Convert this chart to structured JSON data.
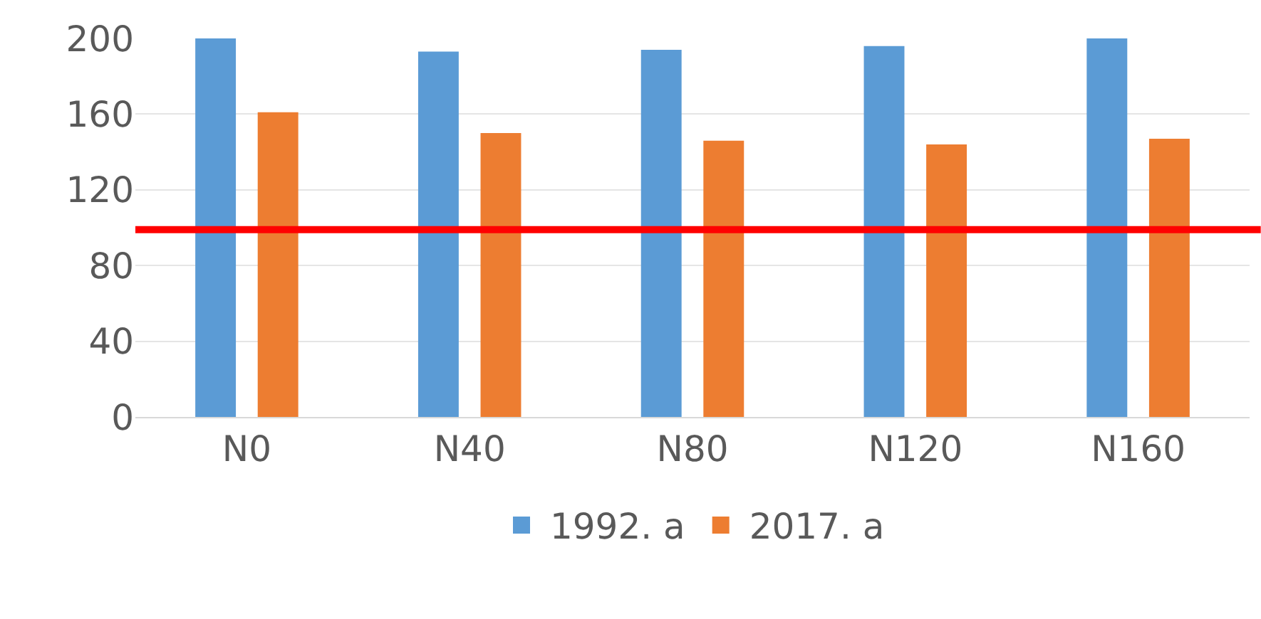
{
  "chart_data": {
    "type": "bar",
    "categories": [
      "N0",
      "N40",
      "N80",
      "N120",
      "N160"
    ],
    "series": [
      {
        "name": "1992. a",
        "color": "#5b9bd5",
        "values": [
          200,
          193,
          194,
          196,
          200
        ]
      },
      {
        "name": "2017. a",
        "color": "#ed7d31",
        "values": [
          161,
          150,
          146,
          144,
          147
        ]
      }
    ],
    "ylim": [
      0,
      200
    ],
    "yticks": [
      0,
      40,
      80,
      120,
      160,
      200
    ],
    "grid": "y",
    "legend": "bottom",
    "ref_lines": [
      {
        "axis": "y",
        "value": 99,
        "color": "#ff0000"
      }
    ]
  }
}
